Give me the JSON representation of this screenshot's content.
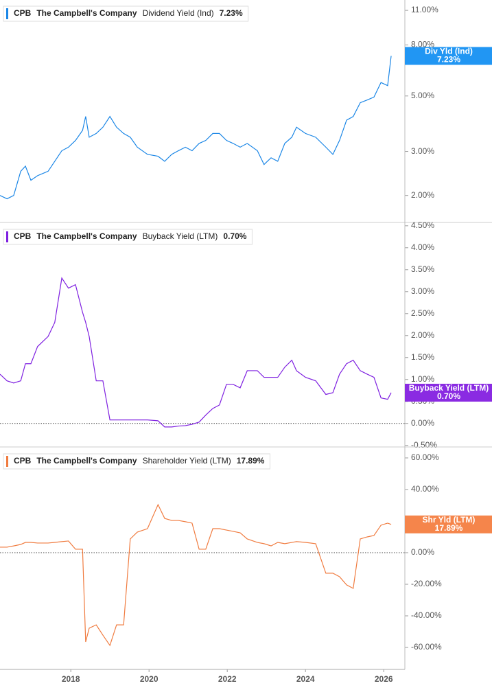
{
  "chart_data": [
    {
      "type": "line",
      "log_scale": true,
      "x": [
        2016.19,
        2016.37,
        2016.54,
        2016.72,
        2016.84,
        2016.98,
        2017.15,
        2017.42,
        2017.59,
        2017.77,
        2017.94,
        2018.12,
        2018.3,
        2018.38,
        2018.47,
        2018.65,
        2018.82,
        2019.0,
        2019.17,
        2019.35,
        2019.52,
        2019.7,
        2019.96,
        2020.23,
        2020.4,
        2020.58,
        2020.75,
        2020.93,
        2021.1,
        2021.28,
        2021.45,
        2021.63,
        2021.8,
        2021.98,
        2022.15,
        2022.33,
        2022.51,
        2022.77,
        2022.94,
        2023.12,
        2023.29,
        2023.47,
        2023.65,
        2023.77,
        2024.0,
        2024.26,
        2024.52,
        2024.7,
        2024.87,
        2025.05,
        2025.22,
        2025.4,
        2025.58,
        2025.75,
        2025.93,
        2026.1,
        2026.19
      ],
      "xlim": [
        2016.19,
        2026.54
      ],
      "ylim": [
        1.57,
        12.1
      ],
      "yticks": [
        {
          "value": 2,
          "label": "2.00%"
        },
        {
          "value": 3,
          "label": "3.00%"
        },
        {
          "value": 5,
          "label": "5.00%"
        },
        {
          "value": 8,
          "label": "8.00%"
        },
        {
          "value": 11,
          "label": "11.00%"
        }
      ],
      "series": [
        {
          "ticker": "CPB",
          "company": "The Campbell's Company",
          "name": "Dividend Yield (Ind)",
          "tag": "Div Yld (Ind)",
          "color": "#1a86e6",
          "tag_color": "#2196f3",
          "values": [
            2.0,
            1.94,
            2.0,
            2.5,
            2.62,
            2.3,
            2.4,
            2.5,
            2.74,
            3.02,
            3.12,
            3.32,
            3.64,
            4.14,
            3.42,
            3.54,
            3.75,
            4.14,
            3.75,
            3.54,
            3.42,
            3.12,
            2.92,
            2.87,
            2.74,
            2.92,
            3.02,
            3.12,
            3.02,
            3.23,
            3.32,
            3.54,
            3.54,
            3.32,
            3.23,
            3.12,
            3.23,
            3.02,
            2.66,
            2.83,
            2.74,
            3.23,
            3.42,
            3.75,
            3.54,
            3.42,
            3.12,
            2.92,
            3.32,
            4.0,
            4.14,
            4.7,
            4.82,
            4.95,
            5.66,
            5.5,
            7.23
          ],
          "value_labels": [
            null,
            null,
            null,
            null,
            null,
            null,
            null,
            null,
            null,
            null,
            null,
            null,
            null,
            null,
            null,
            null,
            null,
            null,
            null,
            null,
            null,
            null,
            null,
            null,
            null,
            null,
            null,
            null,
            null,
            null,
            null,
            null,
            null,
            null,
            null,
            null,
            null,
            null,
            null,
            null,
            null,
            null,
            null,
            null,
            null,
            null,
            null,
            null,
            null,
            null,
            null,
            null,
            null,
            null,
            null,
            null,
            "7.23%"
          ]
        }
      ]
    },
    {
      "type": "line",
      "log_scale": false,
      "zero_line": true,
      "x": [
        2016.19,
        2016.37,
        2016.54,
        2016.72,
        2016.84,
        2016.98,
        2017.15,
        2017.42,
        2017.59,
        2017.77,
        2017.94,
        2018.12,
        2018.3,
        2018.38,
        2018.47,
        2018.65,
        2018.82,
        2019.0,
        2019.17,
        2019.35,
        2019.52,
        2019.7,
        2019.96,
        2020.23,
        2020.4,
        2020.58,
        2020.75,
        2020.93,
        2021.1,
        2021.28,
        2021.45,
        2021.63,
        2021.8,
        2021.98,
        2022.15,
        2022.33,
        2022.51,
        2022.77,
        2022.94,
        2023.12,
        2023.29,
        2023.47,
        2023.65,
        2023.77,
        2024.0,
        2024.26,
        2024.52,
        2024.7,
        2024.87,
        2025.05,
        2025.22,
        2025.4,
        2025.58,
        2025.75,
        2025.93,
        2026.1,
        2026.19
      ],
      "xlim": [
        2016.19,
        2026.54
      ],
      "ylim": [
        -0.52,
        4.56
      ],
      "yticks": [
        {
          "value": -0.5,
          "label": "-0.50%"
        },
        {
          "value": 0,
          "label": "0.00%"
        },
        {
          "value": 0.5,
          "label": "0.50%"
        },
        {
          "value": 1,
          "label": "1.00%"
        },
        {
          "value": 1.5,
          "label": "1.50%"
        },
        {
          "value": 2,
          "label": "2.00%"
        },
        {
          "value": 2.5,
          "label": "2.50%"
        },
        {
          "value": 3,
          "label": "3.00%"
        },
        {
          "value": 3.5,
          "label": "3.50%"
        },
        {
          "value": 4,
          "label": "4.00%"
        },
        {
          "value": 4.5,
          "label": "4.50%"
        }
      ],
      "series": [
        {
          "ticker": "CPB",
          "company": "The Campbell's Company",
          "name": "Buyback Yield (LTM)",
          "tag": "Buyback Yield (LTM)",
          "color": "#7e1fe0",
          "tag_color": "#8a2be2",
          "values": [
            1.12,
            0.97,
            0.92,
            0.97,
            1.36,
            1.36,
            1.75,
            1.98,
            2.3,
            3.31,
            3.08,
            3.16,
            2.53,
            2.3,
            1.98,
            0.97,
            0.97,
            0.08,
            0.08,
            0.08,
            0.08,
            0.08,
            0.08,
            0.06,
            -0.08,
            -0.08,
            -0.06,
            -0.05,
            -0.02,
            0.03,
            0.19,
            0.34,
            0.42,
            0.89,
            0.89,
            0.81,
            1.2,
            1.2,
            1.05,
            1.05,
            1.05,
            1.28,
            1.44,
            1.2,
            1.05,
            0.97,
            0.66,
            0.7,
            1.12,
            1.36,
            1.44,
            1.2,
            1.12,
            1.05,
            0.58,
            0.55,
            0.7
          ],
          "value_labels": [
            null,
            null,
            null,
            null,
            null,
            null,
            null,
            null,
            null,
            null,
            null,
            null,
            null,
            null,
            null,
            null,
            null,
            null,
            null,
            null,
            null,
            null,
            null,
            null,
            null,
            null,
            null,
            null,
            null,
            null,
            null,
            null,
            null,
            null,
            null,
            null,
            null,
            null,
            null,
            null,
            null,
            null,
            null,
            null,
            null,
            null,
            null,
            null,
            null,
            null,
            null,
            null,
            null,
            null,
            null,
            null,
            "0.70%"
          ]
        }
      ]
    },
    {
      "type": "line",
      "log_scale": false,
      "zero_line": true,
      "x": [
        2016.19,
        2016.37,
        2016.54,
        2016.72,
        2016.84,
        2016.98,
        2017.15,
        2017.42,
        2017.59,
        2017.77,
        2017.94,
        2018.12,
        2018.3,
        2018.38,
        2018.47,
        2018.65,
        2018.82,
        2019.0,
        2019.17,
        2019.35,
        2019.52,
        2019.7,
        2019.96,
        2020.23,
        2020.4,
        2020.58,
        2020.75,
        2020.93,
        2021.1,
        2021.28,
        2021.45,
        2021.63,
        2021.8,
        2021.98,
        2022.15,
        2022.33,
        2022.51,
        2022.77,
        2022.94,
        2023.12,
        2023.29,
        2023.47,
        2023.65,
        2023.77,
        2024.0,
        2024.26,
        2024.52,
        2024.7,
        2024.87,
        2025.05,
        2025.22,
        2025.4,
        2025.58,
        2025.75,
        2025.93,
        2026.1,
        2026.19
      ],
      "xlim": [
        2016.19,
        2026.54
      ],
      "xticks": [
        2018,
        2020,
        2022,
        2024,
        2026
      ],
      "ylim": [
        -73.9,
        66.5
      ],
      "yticks": [
        {
          "value": -60,
          "label": "-60.00%"
        },
        {
          "value": -40,
          "label": "-40.00%"
        },
        {
          "value": -20,
          "label": "-20.00%"
        },
        {
          "value": 0,
          "label": "0.00%"
        },
        {
          "value": 20,
          "label": "20.00%"
        },
        {
          "value": 40,
          "label": "40.00%"
        },
        {
          "value": 60,
          "label": "60.00%"
        }
      ],
      "series": [
        {
          "ticker": "CPB",
          "company": "The Campbell's Company",
          "name": "Shareholder Yield (LTM)",
          "tag": "Shr Yld (LTM)",
          "color": "#f07b3f",
          "tag_color": "#f5854b",
          "values": [
            3.5,
            3.5,
            4.3,
            5.2,
            6.5,
            6.5,
            6.1,
            6.1,
            6.5,
            7.0,
            7.4,
            2.2,
            2.2,
            -56.5,
            -47.8,
            -45.7,
            -52.2,
            -58.7,
            -45.7,
            -45.7,
            8.7,
            13.0,
            15.2,
            30.4,
            21.7,
            20.4,
            20.4,
            19.6,
            18.7,
            2.2,
            2.2,
            15.2,
            15.2,
            14.3,
            13.5,
            12.6,
            8.7,
            6.5,
            5.7,
            4.3,
            6.5,
            5.7,
            6.5,
            7.0,
            6.5,
            5.7,
            -13.0,
            -13.0,
            -15.2,
            -20.4,
            -22.6,
            8.7,
            10.0,
            10.9,
            17.4,
            18.7,
            17.89
          ],
          "value_labels": [
            null,
            null,
            null,
            null,
            null,
            null,
            null,
            null,
            null,
            null,
            null,
            null,
            null,
            null,
            null,
            null,
            null,
            null,
            null,
            null,
            null,
            null,
            null,
            null,
            null,
            null,
            null,
            null,
            null,
            null,
            null,
            null,
            null,
            null,
            null,
            null,
            null,
            null,
            null,
            null,
            null,
            null,
            null,
            null,
            null,
            null,
            null,
            null,
            null,
            null,
            null,
            null,
            null,
            null,
            null,
            null,
            "17.89%"
          ]
        }
      ]
    }
  ]
}
